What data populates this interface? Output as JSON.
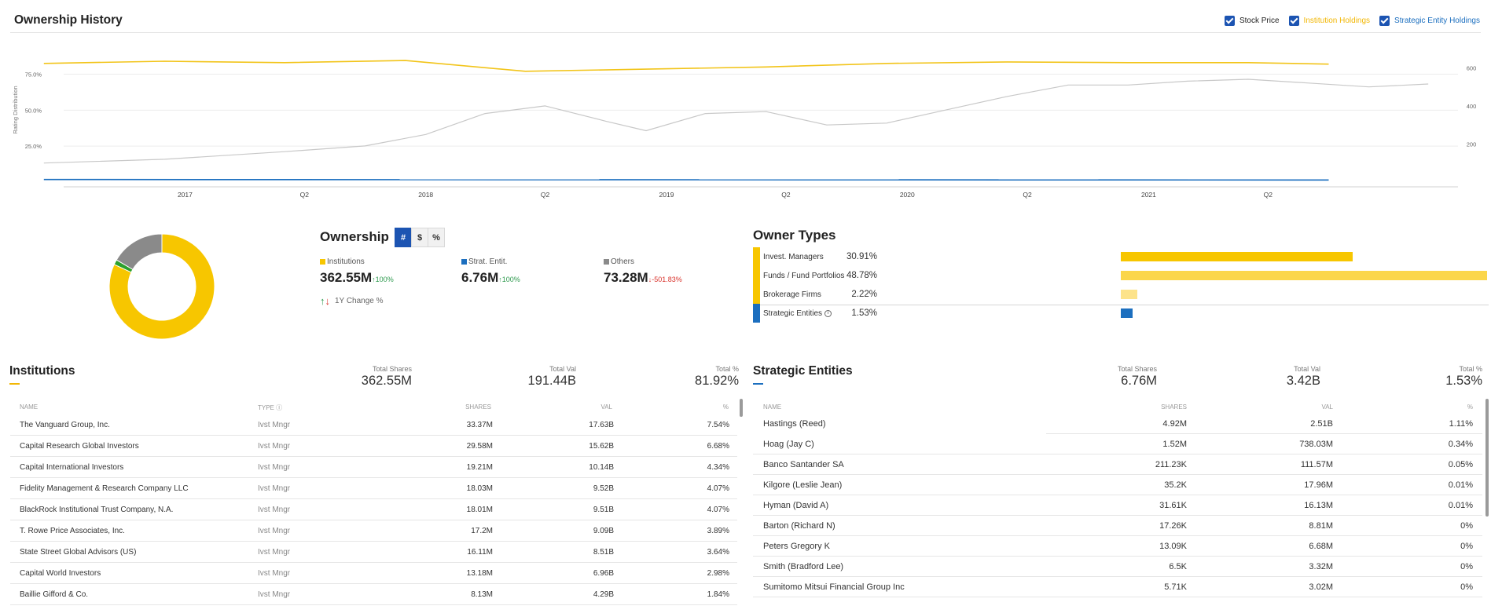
{
  "history": {
    "title": "Ownership History",
    "legend": [
      {
        "label": "Stock Price",
        "color": "#222222"
      },
      {
        "label": "Institution Holdings",
        "color": "#f2b705"
      },
      {
        "label": "Strategic Entity Holdings",
        "color": "#1c6fbf"
      }
    ]
  },
  "chart_data": {
    "type": "line",
    "title": "Ownership History",
    "ylabel": "Rating Distribution",
    "y_left_ticks": [
      "75.0%",
      "50.0%",
      "25.0%"
    ],
    "y_right_ticks": [
      "600",
      "400",
      "200"
    ],
    "x_ticks": [
      "2017",
      "Q2",
      "2018",
      "Q2",
      "2019",
      "Q2",
      "2020",
      "Q2",
      "2021",
      "Q2"
    ],
    "ylim_left": [
      0,
      90
    ],
    "ylim_right": [
      0,
      680
    ],
    "series": [
      {
        "name": "Institution Holdings",
        "color": "#f2c419",
        "axis": "left",
        "x": [
          "2016-06",
          "2016-12",
          "2017-06",
          "2017-12",
          "2018-06",
          "2018-12",
          "2019-06",
          "2019-12",
          "2020-06",
          "2020-12",
          "2021-06",
          "2021-10"
        ],
        "y": [
          82.5,
          84.0,
          83.0,
          84.5,
          77.0,
          78.5,
          80.0,
          82.5,
          83.5,
          83.0,
          83.0,
          82.0
        ]
      },
      {
        "name": "Strategic Entity Holdings",
        "color": "#1c6fbf",
        "axis": "left",
        "x": [
          "2016-06",
          "2021-10"
        ],
        "y": [
          1.8,
          1.5
        ]
      },
      {
        "name": "Stock Price",
        "color": "#c8c8c8",
        "axis": "right",
        "x": [
          "2016-06",
          "2016-12",
          "2017-06",
          "2017-10",
          "2018-01",
          "2018-04",
          "2018-07",
          "2018-10",
          "2018-12",
          "2019-03",
          "2019-06",
          "2019-09",
          "2019-12",
          "2020-03",
          "2020-06",
          "2020-09",
          "2020-12",
          "2021-03",
          "2021-06",
          "2021-09",
          "2021-12",
          "2022-03"
        ],
        "y": [
          100,
          120,
          160,
          190,
          250,
          360,
          400,
          320,
          270,
          360,
          370,
          300,
          310,
          380,
          450,
          510,
          510,
          530,
          540,
          520,
          500,
          515
        ]
      }
    ]
  },
  "donut": {
    "slices": [
      {
        "label": "Institutions",
        "value": 362.55,
        "color": "#f7c600"
      },
      {
        "label": "Strat. Entit.",
        "value": 6.76,
        "color": "#2ca02c"
      },
      {
        "label": "Others",
        "value": 73.28,
        "color": "#8a8a8a"
      }
    ]
  },
  "ownership": {
    "title": "Ownership",
    "toggles": [
      "#",
      "$",
      "%"
    ],
    "active_toggle": "#",
    "cols": [
      {
        "label": "Institutions",
        "color": "#f7c600",
        "value": "362.55M",
        "change": "100%",
        "direction": "up"
      },
      {
        "label": "Strat. Entit.",
        "color": "#1c6fbf",
        "value": "6.76M",
        "change": "100%",
        "direction": "up"
      },
      {
        "label": "Others",
        "color": "#8a8a8a",
        "value": "73.28M",
        "change": "-501.83%",
        "direction": "down"
      }
    ],
    "change_note": "1Y Change %"
  },
  "owner_types": {
    "title": "Owner Types",
    "rows": [
      {
        "name": "Invest. Managers",
        "pct": "30.91%",
        "value": 30.91,
        "color": "#f7c600",
        "marker": "#f7c600"
      },
      {
        "name": "Funds / Fund Portfolios",
        "pct": "48.78%",
        "value": 48.78,
        "color": "#fbd64a",
        "marker": "#f7c600"
      },
      {
        "name": "Brokerage Firms",
        "pct": "2.22%",
        "value": 2.22,
        "color": "#fde38a",
        "marker": "#f7c600"
      },
      {
        "name": "Strategic Entities",
        "pct": "1.53%",
        "value": 1.53,
        "color": "#1c6fbf",
        "marker": "#1c6fbf"
      }
    ]
  },
  "institutions": {
    "title": "Institutions",
    "accent": "#f2b705",
    "stats": [
      {
        "label": "Total Shares",
        "value": "362.55M"
      },
      {
        "label": "Total Val",
        "value": "191.44B"
      },
      {
        "label": "Total %",
        "value": "81.92%"
      }
    ],
    "headers": {
      "name": "NAME",
      "type": "TYPE",
      "shares": "SHARES",
      "val": "VAL",
      "pct": "%"
    },
    "rows": [
      {
        "name": "The Vanguard Group, Inc.",
        "type": "Ivst Mngr",
        "shares": "33.37M",
        "val": "17.63B",
        "pct": "7.54%"
      },
      {
        "name": "Capital Research Global Investors",
        "type": "Ivst Mngr",
        "shares": "29.58M",
        "val": "15.62B",
        "pct": "6.68%"
      },
      {
        "name": "Capital International Investors",
        "type": "Ivst Mngr",
        "shares": "19.21M",
        "val": "10.14B",
        "pct": "4.34%"
      },
      {
        "name": "Fidelity Management & Research Company LLC",
        "type": "Ivst Mngr",
        "shares": "18.03M",
        "val": "9.52B",
        "pct": "4.07%"
      },
      {
        "name": "BlackRock Institutional Trust Company, N.A.",
        "type": "Ivst Mngr",
        "shares": "18.01M",
        "val": "9.51B",
        "pct": "4.07%"
      },
      {
        "name": "T. Rowe Price Associates, Inc.",
        "type": "Ivst Mngr",
        "shares": "17.2M",
        "val": "9.09B",
        "pct": "3.89%"
      },
      {
        "name": "State Street Global Advisors (US)",
        "type": "Ivst Mngr",
        "shares": "16.11M",
        "val": "8.51B",
        "pct": "3.64%"
      },
      {
        "name": "Capital World Investors",
        "type": "Ivst Mngr",
        "shares": "13.18M",
        "val": "6.96B",
        "pct": "2.98%"
      },
      {
        "name": "Baillie Gifford & Co.",
        "type": "Ivst Mngr",
        "shares": "8.13M",
        "val": "4.29B",
        "pct": "1.84%"
      }
    ]
  },
  "strategic": {
    "title": "Strategic Entities",
    "accent": "#1c6fbf",
    "stats": [
      {
        "label": "Total Shares",
        "value": "6.76M"
      },
      {
        "label": "Total Val",
        "value": "3.42B"
      },
      {
        "label": "Total %",
        "value": "1.53%"
      }
    ],
    "headers": {
      "name": "NAME",
      "shares": "SHARES",
      "val": "VAL",
      "pct": "%"
    },
    "rows": [
      {
        "name": "Hastings (Reed)",
        "shares": "4.92M",
        "val": "2.51B",
        "pct": "1.11%"
      },
      {
        "name": "Hoag (Jay C)",
        "shares": "1.52M",
        "val": "738.03M",
        "pct": "0.34%"
      },
      {
        "name": "Banco Santander SA",
        "shares": "211.23K",
        "val": "111.57M",
        "pct": "0.05%"
      },
      {
        "name": "Kilgore (Leslie Jean)",
        "shares": "35.2K",
        "val": "17.96M",
        "pct": "0.01%"
      },
      {
        "name": "Hyman (David A)",
        "shares": "31.61K",
        "val": "16.13M",
        "pct": "0.01%"
      },
      {
        "name": "Barton (Richard N)",
        "shares": "17.26K",
        "val": "8.81M",
        "pct": "0%"
      },
      {
        "name": "Peters Gregory K",
        "shares": "13.09K",
        "val": "6.68M",
        "pct": "0%"
      },
      {
        "name": "Smith (Bradford Lee)",
        "shares": "6.5K",
        "val": "3.32M",
        "pct": "0%"
      },
      {
        "name": "Sumitomo Mitsui Financial Group Inc",
        "shares": "5.71K",
        "val": "3.02M",
        "pct": "0%"
      }
    ]
  }
}
